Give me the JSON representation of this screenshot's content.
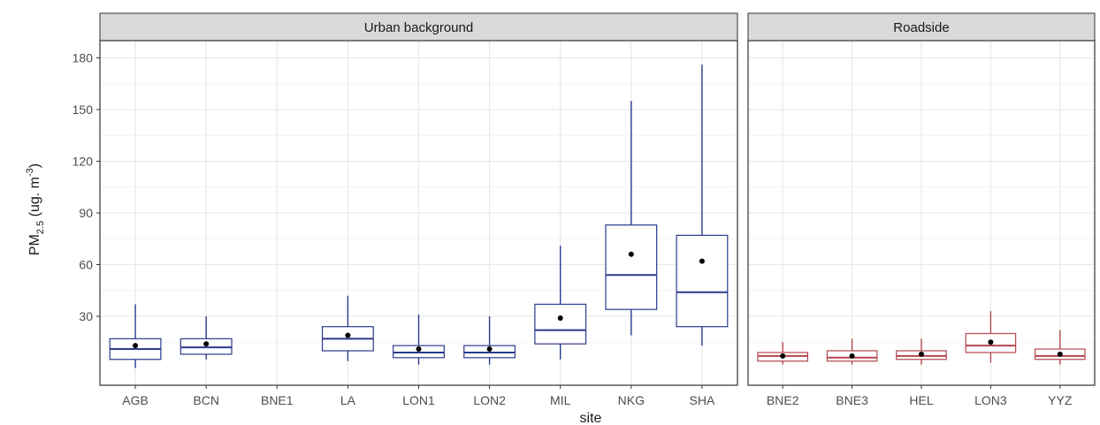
{
  "chart_data": {
    "type": "boxplot",
    "xlabel": "site",
    "ylabel_main": "PM",
    "ylabel_sub": "2.5",
    "ylabel_unit": " (ug. m",
    "ylabel_sup": "-3",
    "ylabel_close": ")",
    "ylim": [
      -10,
      190
    ],
    "yticks": [
      30,
      60,
      90,
      120,
      150,
      180
    ],
    "grid": true,
    "legend": "none",
    "panels": [
      {
        "name": "Urban background",
        "color": "#2b3a8c",
        "categories": [
          "AGB",
          "BCN",
          "BNE1",
          "LA",
          "LON1",
          "LON2",
          "MIL",
          "NKG",
          "SHA"
        ],
        "boxes": [
          {
            "site": "AGB",
            "min": 0,
            "q1": 5,
            "median": 11,
            "q3": 17,
            "max": 37,
            "mean": 13
          },
          {
            "site": "BCN",
            "min": 5,
            "q1": 8,
            "median": 12,
            "q3": 17,
            "max": 30,
            "mean": 14
          },
          null,
          {
            "site": "LA",
            "min": 4,
            "q1": 10,
            "median": 17,
            "q3": 24,
            "max": 42,
            "mean": 19
          },
          {
            "site": "LON1",
            "min": 2,
            "q1": 6,
            "median": 9,
            "q3": 13,
            "max": 31,
            "mean": 11
          },
          {
            "site": "LON2",
            "min": 2,
            "q1": 6,
            "median": 9,
            "q3": 13,
            "max": 30,
            "mean": 11
          },
          {
            "site": "MIL",
            "min": 5,
            "q1": 14,
            "median": 22,
            "q3": 37,
            "max": 71,
            "mean": 29
          },
          {
            "site": "NKG",
            "min": 19,
            "q1": 34,
            "median": 54,
            "q3": 83,
            "max": 155,
            "mean": 66
          },
          {
            "site": "SHA",
            "min": 13,
            "q1": 24,
            "median": 44,
            "q3": 77,
            "max": 176,
            "mean": 62
          }
        ]
      },
      {
        "name": "Roadside",
        "color": "#b2474e",
        "categories": [
          "BNE2",
          "BNE3",
          "HEL",
          "LON3",
          "YYZ"
        ],
        "boxes": [
          {
            "site": "BNE2",
            "min": 2,
            "q1": 4,
            "median": 7,
            "q3": 9,
            "max": 15,
            "mean": 7
          },
          {
            "site": "BNE3",
            "min": 2,
            "q1": 4,
            "median": 6,
            "q3": 10,
            "max": 17,
            "mean": 7
          },
          {
            "site": "HEL",
            "min": 2,
            "q1": 5,
            "median": 7,
            "q3": 10,
            "max": 17,
            "mean": 8
          },
          {
            "site": "LON3",
            "min": 3,
            "q1": 9,
            "median": 13,
            "q3": 20,
            "max": 33,
            "mean": 15
          },
          {
            "site": "YYZ",
            "min": 2,
            "q1": 5,
            "median": 7,
            "q3": 11,
            "max": 22,
            "mean": 8
          }
        ]
      }
    ]
  }
}
